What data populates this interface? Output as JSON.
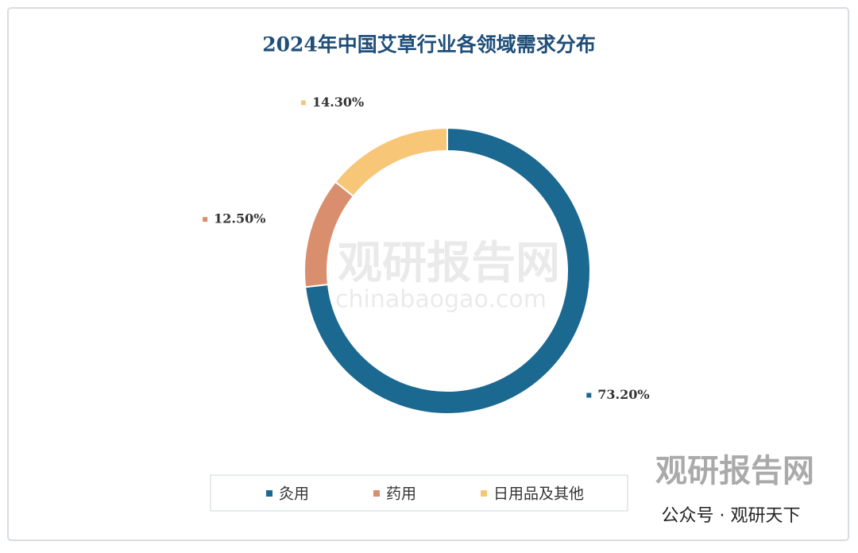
{
  "chart_data": {
    "type": "donut",
    "title": "2024年中国艾草行业各领域需求分布",
    "categories": [
      "灸用",
      "药用",
      "日用品及其他"
    ],
    "values": [
      73.2,
      12.5,
      14.3
    ],
    "value_labels": [
      "73.20%",
      "12.50%",
      "14.30%"
    ],
    "colors": [
      "#1b6891",
      "#d98f6e",
      "#f8c677"
    ],
    "legend": "bottom"
  },
  "watermark": {
    "brand": "观研报告网",
    "site": "chinabaogao.com",
    "account": "公众号 · 观研天下"
  }
}
